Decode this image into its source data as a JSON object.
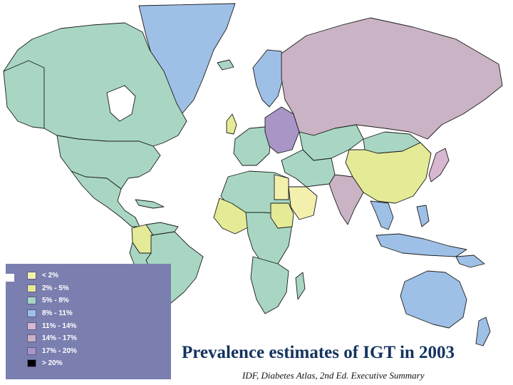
{
  "title": "Prevalence estimates of IGT in 2003",
  "source": "IDF, Diabetes Atlas, 2nd Ed. Executive Summary",
  "legend": {
    "items": [
      {
        "label": "< 2%",
        "color": "#f3f0ad"
      },
      {
        "label": "2% - 5%",
        "color": "#e4ea95"
      },
      {
        "label": "5% - 8%",
        "color": "#a8d6c3"
      },
      {
        "label": "8% - 11%",
        "color": "#9fc0e6"
      },
      {
        "label": "11% - 14%",
        "color": "#d8b7d0"
      },
      {
        "label": "14% - 17%",
        "color": "#c9b3c4"
      },
      {
        "label": "17% - 20%",
        "color": "#a996c6"
      },
      {
        "label": "> 20%",
        "color": "#000000"
      }
    ]
  },
  "map": {
    "colors": {
      "lt2": "#f3f0ad",
      "p2to5": "#e4ea95",
      "p5to8": "#a8d6c3",
      "p8to11": "#9fc0e6",
      "p11to14": "#d8b7d0",
      "p14to17": "#c9b3c4",
      "p17to20": "#a996c6",
      "border": "#1a1a1a",
      "legend_bg": "#7b7fb0"
    }
  }
}
